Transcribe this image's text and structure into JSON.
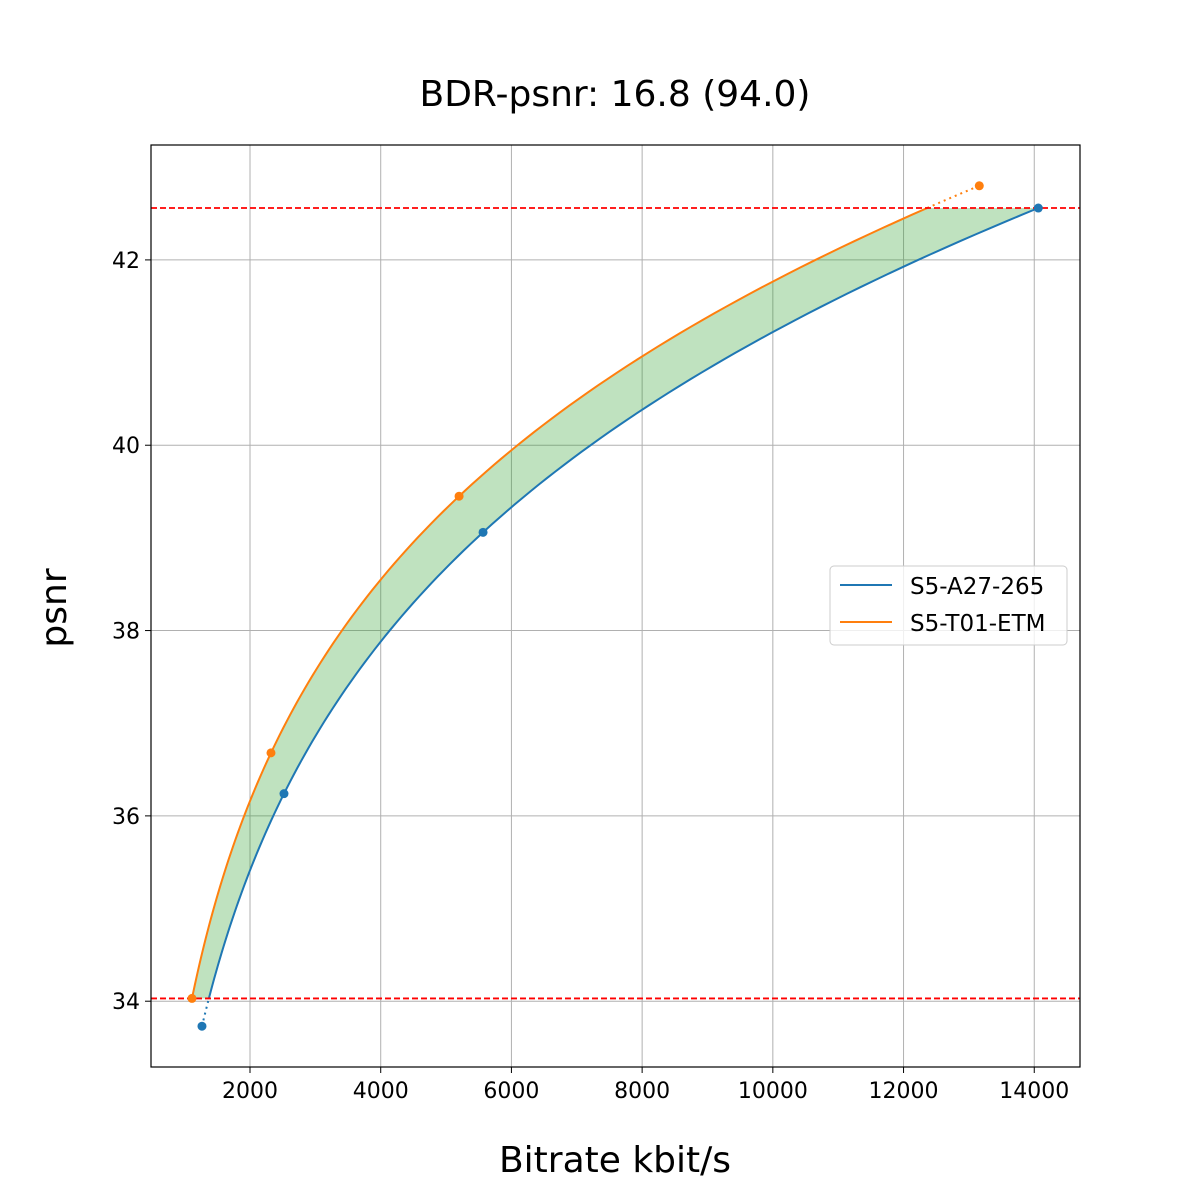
{
  "chart_data": {
    "type": "line",
    "title": "BDR-psnr: 16.8 (94.0)",
    "xlabel": "Bitrate kbit/s",
    "ylabel": "psnr",
    "xlim": [
      485,
      14700
    ],
    "ylim": [
      33.29,
      43.24
    ],
    "xticks": [
      2000,
      4000,
      6000,
      8000,
      10000,
      12000,
      14000
    ],
    "yticks": [
      34,
      36,
      38,
      40,
      42
    ],
    "grid": true,
    "legend_position": "center-right",
    "reference_lines": [
      {
        "y": 42.56,
        "color": "#ff0000",
        "style": "dashed"
      },
      {
        "y": 34.03,
        "color": "#ff0000",
        "style": "dashed"
      }
    ],
    "fill_between": {
      "color": "#2ca02c",
      "alpha": 0.3,
      "ymin": 34.03,
      "ymax": 42.56
    },
    "series": [
      {
        "name": "S5-A27-265",
        "color": "#1f77b4",
        "x": [
          1265,
          2520,
          5566,
          14062
        ],
        "y": [
          33.73,
          36.24,
          39.06,
          42.56
        ]
      },
      {
        "name": "S5-T01-ETM",
        "color": "#ff7f0e",
        "x": [
          1112,
          2321,
          5199,
          13159
        ],
        "y": [
          34.03,
          36.68,
          39.45,
          42.8
        ]
      }
    ]
  }
}
